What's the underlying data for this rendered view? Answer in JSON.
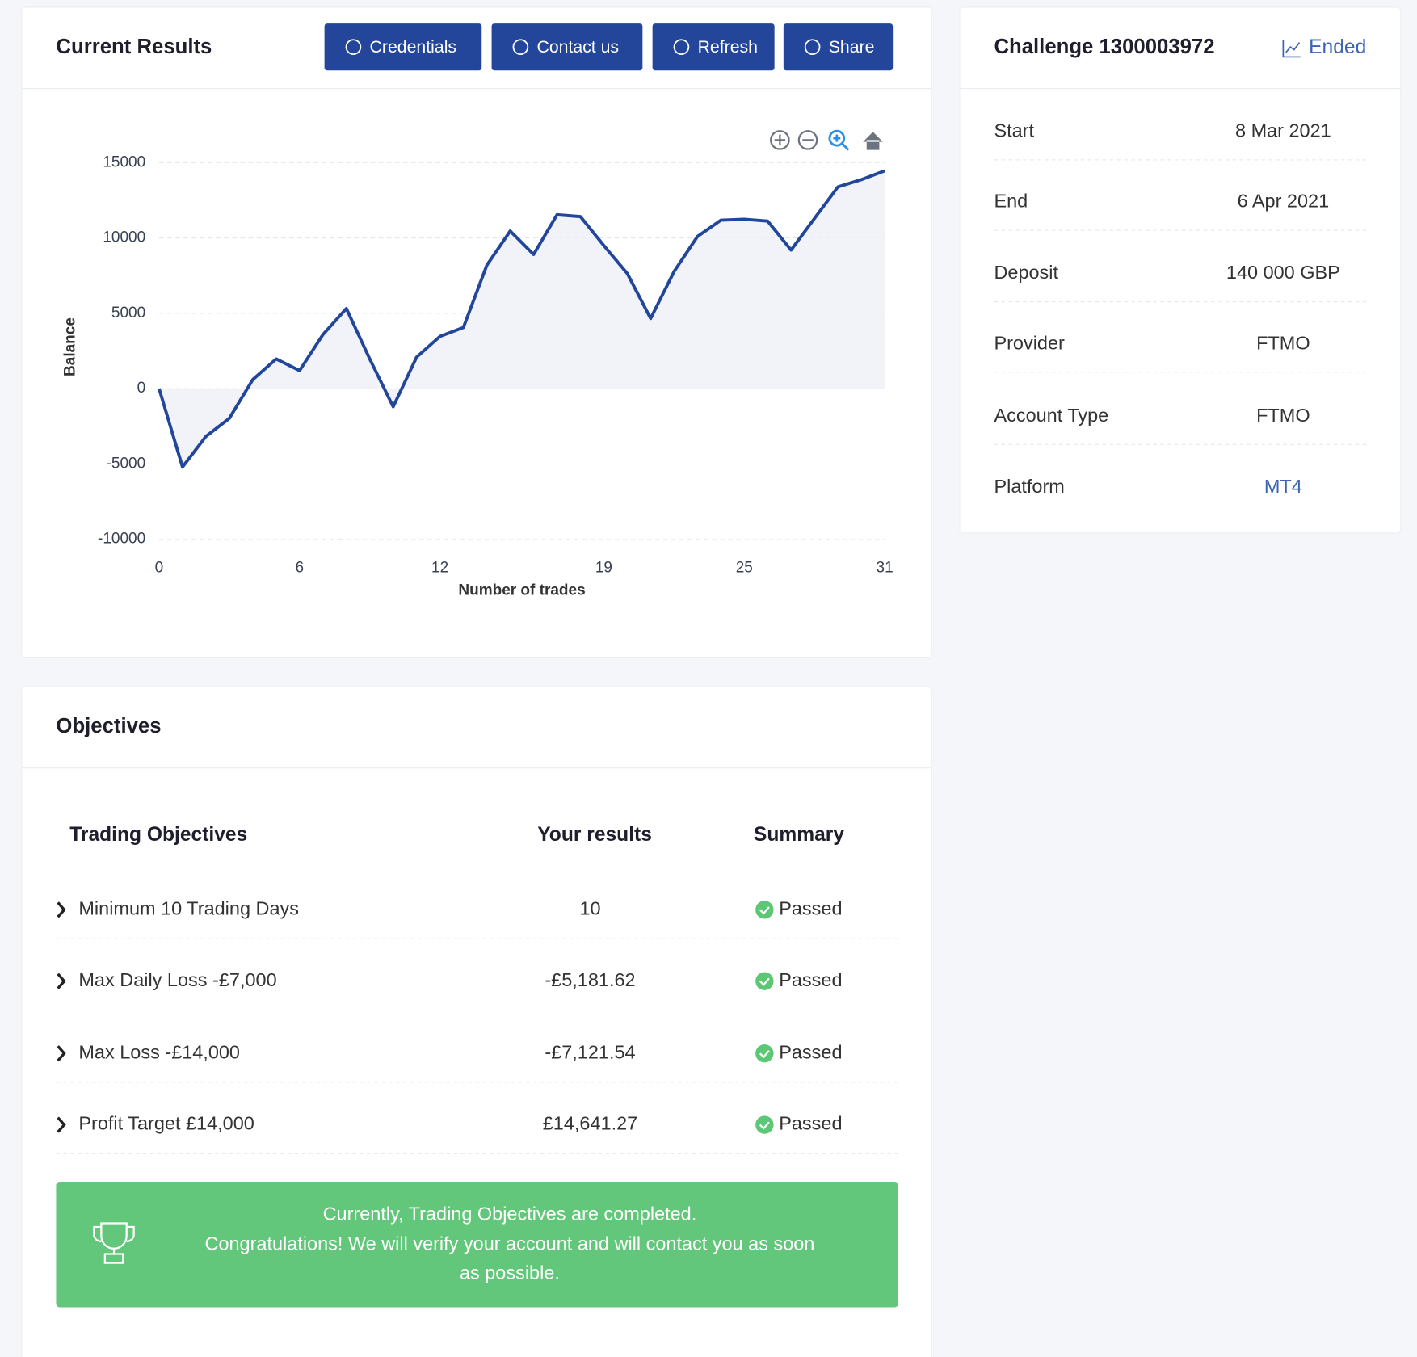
{
  "header": {
    "title": "Current Results",
    "buttons": [
      "Credentials",
      "Contact us",
      "Refresh",
      "Share"
    ]
  },
  "chart_data": {
    "type": "line",
    "xlabel": "Number of trades",
    "ylabel": "Balance",
    "x": [
      0,
      1,
      2,
      3,
      4,
      5,
      6,
      7,
      8,
      9,
      10,
      11,
      12,
      13,
      14,
      15,
      16,
      17,
      18,
      19,
      20,
      21,
      22,
      23,
      24,
      25,
      26,
      27,
      28,
      29,
      30,
      31
    ],
    "values": [
      0,
      -5200,
      -3170,
      -1970,
      600,
      1970,
      1200,
      3590,
      5320,
      1970,
      -1200,
      2090,
      3470,
      4060,
      8190,
      10460,
      8910,
      11540,
      11420,
      9500,
      7650,
      4660,
      7770,
      10100,
      11180,
      11240,
      11120,
      9200,
      11300,
      13390,
      13870,
      14460
    ],
    "color": "#22479a",
    "xlim": [
      0,
      31
    ],
    "ylim": [
      -10000,
      15000
    ],
    "xticks": [
      0,
      6,
      12,
      19,
      25,
      31
    ],
    "yticks": [
      -10000,
      -5000,
      0,
      5000,
      10000,
      15000
    ],
    "grid": true
  },
  "challenge": {
    "title": "Challenge 1300003972",
    "status": "Ended",
    "rows": [
      [
        "Start",
        "8 Mar 2021"
      ],
      [
        "End",
        "6 Apr 2021"
      ],
      [
        "Deposit",
        "140 000 GBP"
      ],
      [
        "Provider",
        "FTMO"
      ],
      [
        "Account Type",
        "FTMO"
      ],
      [
        "Platform",
        "MT4"
      ]
    ]
  },
  "objectives": {
    "title": "Objectives",
    "columns": [
      "Trading Objectives",
      "Your results",
      "Summary"
    ],
    "rows": [
      [
        "Minimum 10 Trading Days",
        "10",
        "Passed"
      ],
      [
        "Max Daily Loss -£7,000",
        "-£5,181.62",
        "Passed"
      ],
      [
        "Max Loss -£14,000",
        "-£7,121.54",
        "Passed"
      ],
      [
        "Profit Target £14,000",
        "£14,641.27",
        "Passed"
      ]
    ],
    "message": [
      "Currently, Trading Objectives are completed.",
      "Congratulations! We will verify your account and will contact you as soon",
      "as possible."
    ]
  }
}
